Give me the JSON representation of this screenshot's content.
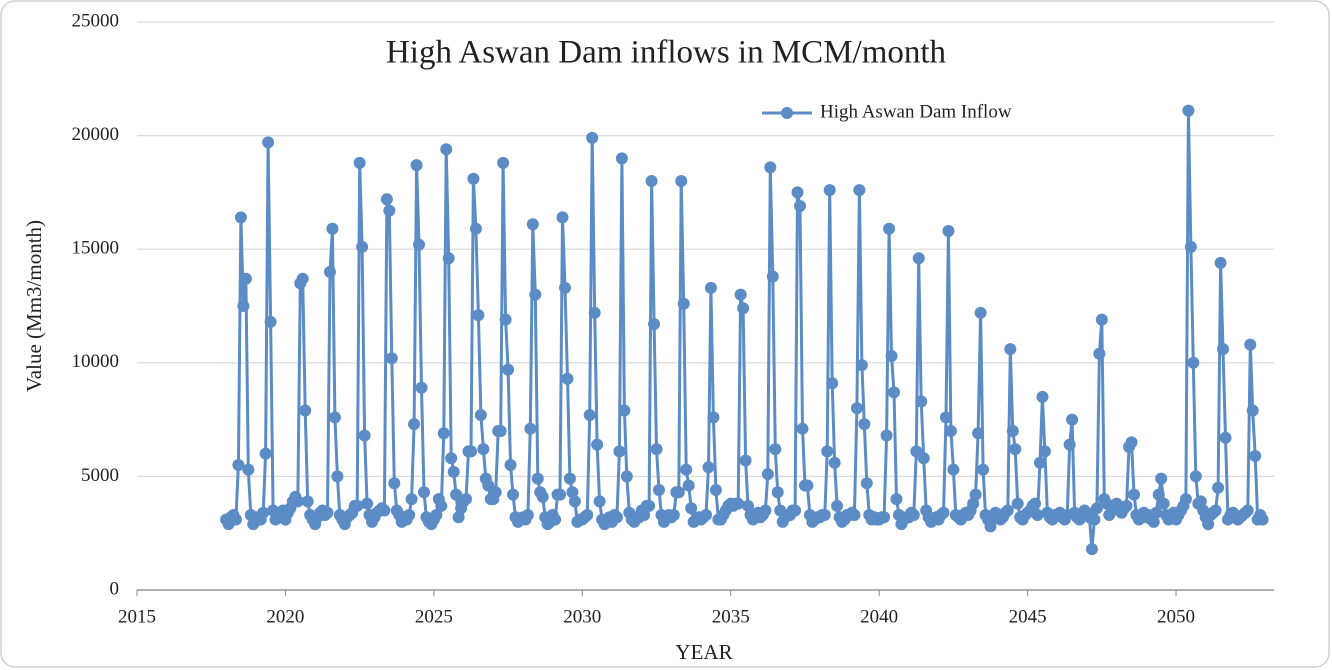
{
  "chart_data": {
    "type": "line",
    "title": "High Aswan Dam inflows in MCM/month",
    "x_label": "YEAR",
    "y_label": "Value (Mm3/month)",
    "xlim": [
      2015,
      2053.3
    ],
    "xticks": [
      2015,
      2020,
      2025,
      2030,
      2035,
      2040,
      2045,
      2050
    ],
    "ylim": [
      0,
      25000
    ],
    "yticks": [
      0,
      5000,
      10000,
      15000,
      20000,
      25000
    ],
    "grid": true,
    "legend": "top-right",
    "x": [
      2018,
      2018.083,
      2018.167,
      2018.25,
      2018.333,
      2018.417,
      2018.5,
      2018.583,
      2018.667,
      2018.75,
      2018.833,
      2018.917,
      2019,
      2019.083,
      2019.167,
      2019.25,
      2019.333,
      2019.417,
      2019.5,
      2019.583,
      2019.667,
      2019.75,
      2019.833,
      2019.917,
      2020,
      2020.083,
      2020.167,
      2020.25,
      2020.333,
      2020.417,
      2020.5,
      2020.583,
      2020.667,
      2020.75,
      2020.833,
      2020.917,
      2021,
      2021.083,
      2021.167,
      2021.25,
      2021.333,
      2021.417,
      2021.5,
      2021.583,
      2021.667,
      2021.75,
      2021.833,
      2021.917,
      2022,
      2022.083,
      2022.167,
      2022.25,
      2022.333,
      2022.417,
      2022.5,
      2022.583,
      2022.667,
      2022.75,
      2022.833,
      2022.917,
      2023,
      2023.083,
      2023.167,
      2023.25,
      2023.333,
      2023.417,
      2023.5,
      2023.583,
      2023.667,
      2023.75,
      2023.833,
      2023.917,
      2024,
      2024.083,
      2024.167,
      2024.25,
      2024.333,
      2024.417,
      2024.5,
      2024.583,
      2024.667,
      2024.75,
      2024.833,
      2024.917,
      2025,
      2025.083,
      2025.167,
      2025.25,
      2025.333,
      2025.417,
      2025.5,
      2025.583,
      2025.667,
      2025.75,
      2025.833,
      2025.917,
      2026,
      2026.083,
      2026.167,
      2026.25,
      2026.333,
      2026.417,
      2026.5,
      2026.583,
      2026.667,
      2026.75,
      2026.833,
      2026.917,
      2027,
      2027.083,
      2027.167,
      2027.25,
      2027.333,
      2027.417,
      2027.5,
      2027.583,
      2027.667,
      2027.75,
      2027.833,
      2027.917,
      2028,
      2028.083,
      2028.167,
      2028.25,
      2028.333,
      2028.417,
      2028.5,
      2028.583,
      2028.667,
      2028.75,
      2028.833,
      2028.917,
      2029,
      2029.083,
      2029.167,
      2029.25,
      2029.333,
      2029.417,
      2029.5,
      2029.583,
      2029.667,
      2029.75,
      2029.833,
      2029.917,
      2030,
      2030.083,
      2030.167,
      2030.25,
      2030.333,
      2030.417,
      2030.5,
      2030.583,
      2030.667,
      2030.75,
      2030.833,
      2030.917,
      2031,
      2031.083,
      2031.167,
      2031.25,
      2031.333,
      2031.417,
      2031.5,
      2031.583,
      2031.667,
      2031.75,
      2031.833,
      2031.917,
      2032,
      2032.083,
      2032.167,
      2032.25,
      2032.333,
      2032.417,
      2032.5,
      2032.583,
      2032.667,
      2032.75,
      2032.833,
      2032.917,
      2033,
      2033.083,
      2033.167,
      2033.25,
      2033.333,
      2033.417,
      2033.5,
      2033.583,
      2033.667,
      2033.75,
      2033.833,
      2033.917,
      2034,
      2034.083,
      2034.167,
      2034.25,
      2034.333,
      2034.417,
      2034.5,
      2034.583,
      2034.667,
      2034.75,
      2034.833,
      2034.917,
      2035,
      2035.083,
      2035.167,
      2035.25,
      2035.333,
      2035.417,
      2035.5,
      2035.583,
      2035.667,
      2035.75,
      2035.833,
      2035.917,
      2036,
      2036.083,
      2036.167,
      2036.25,
      2036.333,
      2036.417,
      2036.5,
      2036.583,
      2036.667,
      2036.75,
      2036.833,
      2036.917,
      2037,
      2037.083,
      2037.167,
      2037.25,
      2037.333,
      2037.417,
      2037.5,
      2037.583,
      2037.667,
      2037.75,
      2037.833,
      2037.917,
      2038,
      2038.083,
      2038.167,
      2038.25,
      2038.333,
      2038.417,
      2038.5,
      2038.583,
      2038.667,
      2038.75,
      2038.833,
      2038.917,
      2039,
      2039.083,
      2039.167,
      2039.25,
      2039.333,
      2039.417,
      2039.5,
      2039.583,
      2039.667,
      2039.75,
      2039.833,
      2039.917,
      2040,
      2040.083,
      2040.167,
      2040.25,
      2040.333,
      2040.417,
      2040.5,
      2040.583,
      2040.667,
      2040.75,
      2040.833,
      2040.917,
      2041,
      2041.083,
      2041.167,
      2041.25,
      2041.333,
      2041.417,
      2041.5,
      2041.583,
      2041.667,
      2041.75,
      2041.833,
      2041.917,
      2042,
      2042.083,
      2042.167,
      2042.25,
      2042.333,
      2042.417,
      2042.5,
      2042.583,
      2042.667,
      2042.75,
      2042.833,
      2042.917,
      2043,
      2043.083,
      2043.167,
      2043.25,
      2043.333,
      2043.417,
      2043.5,
      2043.583,
      2043.667,
      2043.75,
      2043.833,
      2043.917,
      2044,
      2044.083,
      2044.167,
      2044.25,
      2044.333,
      2044.417,
      2044.5,
      2044.583,
      2044.667,
      2044.75,
      2044.833,
      2044.917,
      2045,
      2045.083,
      2045.167,
      2045.25,
      2045.333,
      2045.417,
      2045.5,
      2045.583,
      2045.667,
      2045.75,
      2045.833,
      2045.917,
      2046,
      2046.083,
      2046.167,
      2046.25,
      2046.333,
      2046.417,
      2046.5,
      2046.583,
      2046.667,
      2046.75,
      2046.833,
      2046.917,
      2047,
      2047.083,
      2047.167,
      2047.25,
      2047.333,
      2047.417,
      2047.5,
      2047.583,
      2047.667,
      2047.75,
      2047.833,
      2047.917,
      2048,
      2048.083,
      2048.167,
      2048.25,
      2048.333,
      2048.417,
      2048.5,
      2048.583,
      2048.667,
      2048.75,
      2048.833,
      2048.917,
      2049,
      2049.083,
      2049.167,
      2049.25,
      2049.333,
      2049.417,
      2049.5,
      2049.583,
      2049.667,
      2049.75,
      2049.833,
      2049.917,
      2050,
      2050.083,
      2050.167,
      2050.25,
      2050.333,
      2050.417,
      2050.5,
      2050.583,
      2050.667,
      2050.75,
      2050.833,
      2050.917,
      2051,
      2051.083,
      2051.167,
      2051.25,
      2051.333,
      2051.417,
      2051.5,
      2051.583,
      2051.667,
      2051.75,
      2051.833,
      2051.917,
      2052,
      2052.083,
      2052.167,
      2052.25,
      2052.333,
      2052.417,
      2052.5,
      2052.583,
      2052.667,
      2052.75,
      2052.833,
      2052.917
    ],
    "series": [
      {
        "name": "High Aswan Dam Inflow",
        "color": "#5b8cc6",
        "values": [
          3100,
          2900,
          3200,
          3300,
          3100,
          5500,
          16400,
          12500,
          13700,
          5300,
          3300,
          2900,
          3100,
          3200,
          3100,
          3400,
          6000,
          19700,
          11800,
          3500,
          3100,
          3300,
          3200,
          3500,
          3100,
          3400,
          3600,
          3900,
          4100,
          3900,
          13500,
          13700,
          7900,
          3900,
          3300,
          3100,
          2900,
          3200,
          3400,
          3500,
          3300,
          3400,
          14000,
          15900,
          7600,
          5000,
          3300,
          3100,
          2900,
          3200,
          3300,
          3400,
          3700,
          3700,
          18800,
          15100,
          6800,
          3800,
          3300,
          3000,
          3200,
          3400,
          3500,
          3600,
          3500,
          17200,
          16700,
          10200,
          4700,
          3500,
          3300,
          3000,
          3200,
          3100,
          3300,
          4000,
          7300,
          18700,
          15200,
          8900,
          4300,
          3200,
          3000,
          2900,
          3100,
          3300,
          4000,
          3700,
          6900,
          19400,
          14600,
          5800,
          5200,
          4200,
          3200,
          3600,
          3900,
          4000,
          6100,
          6100,
          18100,
          15900,
          12100,
          7700,
          6200,
          4900,
          4600,
          4000,
          4000,
          4300,
          7000,
          7000,
          18800,
          11900,
          9700,
          5500,
          4200,
          3200,
          3000,
          3100,
          3200,
          3100,
          3300,
          7100,
          16100,
          13000,
          4900,
          4300,
          4100,
          3200,
          2900,
          3000,
          3300,
          3100,
          4200,
          4200,
          16400,
          13300,
          9300,
          4900,
          4300,
          3900,
          3000,
          3100,
          3100,
          3200,
          3300,
          7700,
          19900,
          12200,
          6400,
          3900,
          3100,
          2900,
          3100,
          3200,
          3000,
          3300,
          3200,
          6100,
          19000,
          7900,
          5000,
          3400,
          3100,
          3000,
          3200,
          3200,
          3500,
          3300,
          3700,
          3700,
          18000,
          11700,
          6200,
          4400,
          3300,
          3000,
          3200,
          3300,
          3200,
          3300,
          4300,
          4300,
          18000,
          12600,
          5300,
          4600,
          3600,
          3000,
          3100,
          3200,
          3100,
          3200,
          3300,
          5400,
          13300,
          7600,
          4400,
          3100,
          3100,
          3300,
          3500,
          3700,
          3800,
          3700,
          3800,
          3800,
          13000,
          12400,
          5700,
          3700,
          3300,
          3100,
          3200,
          3400,
          3200,
          3300,
          3500,
          5100,
          18600,
          13800,
          6200,
          4300,
          3500,
          3000,
          3200,
          3300,
          3300,
          3500,
          3500,
          17500,
          16900,
          7100,
          4600,
          4600,
          3300,
          3000,
          3100,
          3200,
          3200,
          3300,
          3300,
          6100,
          17600,
          9100,
          5600,
          3700,
          3200,
          3000,
          3100,
          3300,
          3300,
          3400,
          3300,
          8000,
          17600,
          9900,
          7300,
          4700,
          3300,
          3100,
          3200,
          3100,
          3100,
          3200,
          3200,
          6800,
          15900,
          10300,
          8700,
          4000,
          3300,
          2900,
          3100,
          3200,
          3200,
          3400,
          3300,
          6100,
          14600,
          8300,
          5800,
          3500,
          3200,
          3000,
          3100,
          3200,
          3100,
          3300,
          3400,
          7600,
          15800,
          7000,
          5300,
          3300,
          3200,
          3100,
          3300,
          3400,
          3300,
          3500,
          3800,
          4200,
          6900,
          12200,
          5300,
          3300,
          3100,
          2800,
          3200,
          3400,
          3300,
          3100,
          3200,
          3400,
          3500,
          10600,
          7000,
          6200,
          3800,
          3200,
          3100,
          3300,
          3400,
          3500,
          3700,
          3800,
          3300,
          5600,
          8500,
          6100,
          3400,
          3200,
          3100,
          3300,
          3300,
          3400,
          3200,
          3100,
          3300,
          6400,
          7500,
          3400,
          3200,
          3100,
          3300,
          3500,
          3400,
          3200,
          1800,
          3100,
          3600,
          10400,
          11900,
          4000,
          3800,
          3300,
          3500,
          3600,
          3800,
          3500,
          3400,
          3600,
          3700,
          6300,
          6500,
          4200,
          3300,
          3100,
          3300,
          3400,
          3200,
          3300,
          3100,
          3000,
          3400,
          4200,
          4900,
          3800,
          3300,
          3100,
          3200,
          3400,
          3100,
          3300,
          3500,
          3700,
          4000,
          21100,
          15100,
          10000,
          5000,
          3800,
          3900,
          3500,
          3200,
          2900,
          3300,
          3400,
          3500,
          4500,
          14400,
          10600,
          6700,
          3100,
          3300,
          3400,
          3200,
          3100,
          3200,
          3300,
          3400,
          3500,
          10800,
          7900,
          5900,
          3100,
          3300,
          3100
        ]
      }
    ]
  }
}
